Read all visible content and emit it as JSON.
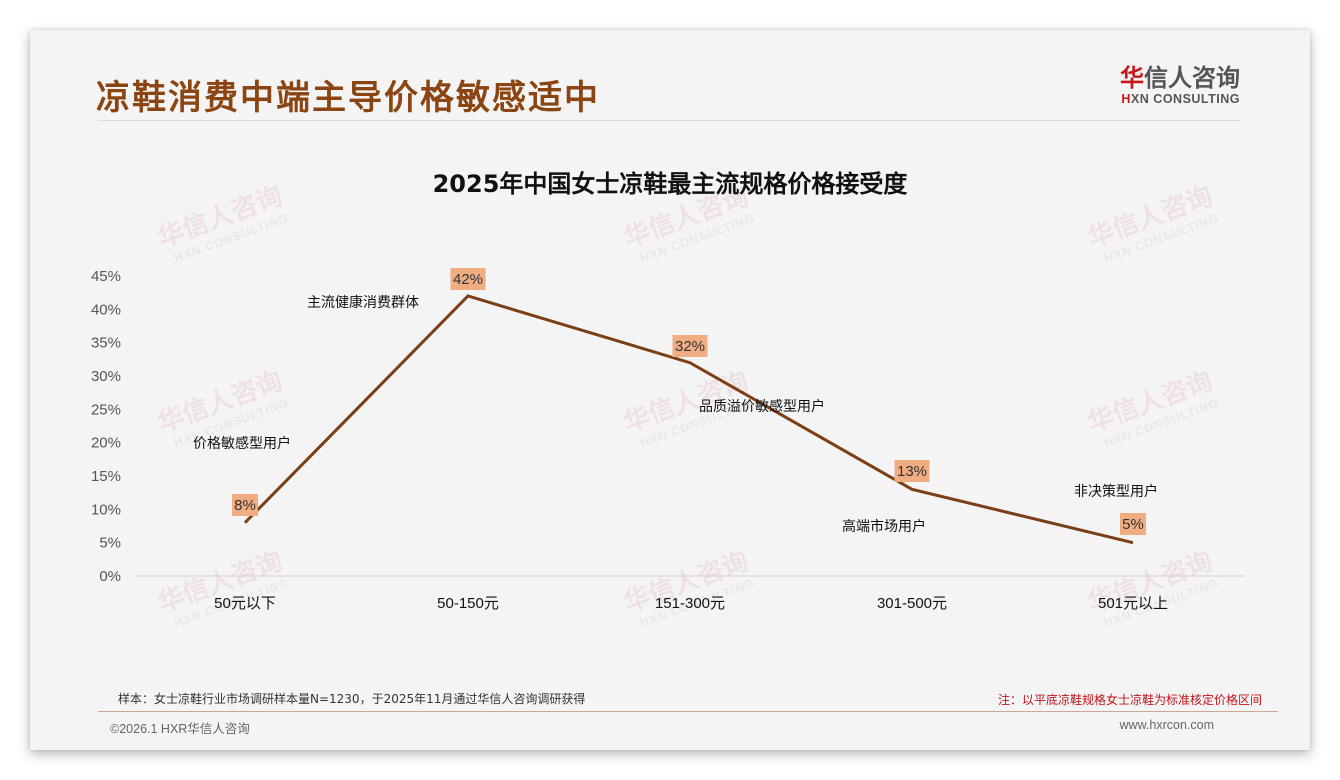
{
  "header": {
    "page_title": "凉鞋消费中端主导价格敏感适中",
    "logo_cn_highlight": "华",
    "logo_cn_rest": "信人咨询",
    "logo_en_highlight": "H",
    "logo_en_rest": "XN CONSULTING"
  },
  "watermark": {
    "cn": "华信人咨询",
    "en": "HXN CONSULTING"
  },
  "chart_data": {
    "type": "line",
    "title": "2025年中国女士凉鞋最主流规格价格接受度",
    "xlabel": "",
    "ylabel": "",
    "categories": [
      "50元以下",
      "50-150元",
      "151-300元",
      "301-500元",
      "501元以上"
    ],
    "values": [
      8,
      42,
      32,
      13,
      5
    ],
    "value_labels": [
      "8%",
      "42%",
      "32%",
      "13%",
      "5%"
    ],
    "annotations": [
      "价格敏感型用户",
      "主流健康消费群体",
      "品质溢价敏感型用户",
      "高端市场用户",
      "非决策型用户"
    ],
    "yticks": [
      "0%",
      "5%",
      "10%",
      "15%",
      "20%",
      "25%",
      "30%",
      "35%",
      "40%",
      "45%"
    ],
    "ylim": [
      0,
      45
    ],
    "grid": false,
    "legend": "none",
    "line_color": "#7b3f16",
    "label_bg_color": "#f0ad82"
  },
  "footer": {
    "sample_note": "样本：女士凉鞋行业市场调研样本量N=1230，于2025年11月通过华信人咨询调研获得",
    "note": "注：以平底凉鞋规格女士凉鞋为标准核定价格区间",
    "copyright": "©2026.1 HXR华信人咨询",
    "website": "www.hxrcon.com"
  }
}
